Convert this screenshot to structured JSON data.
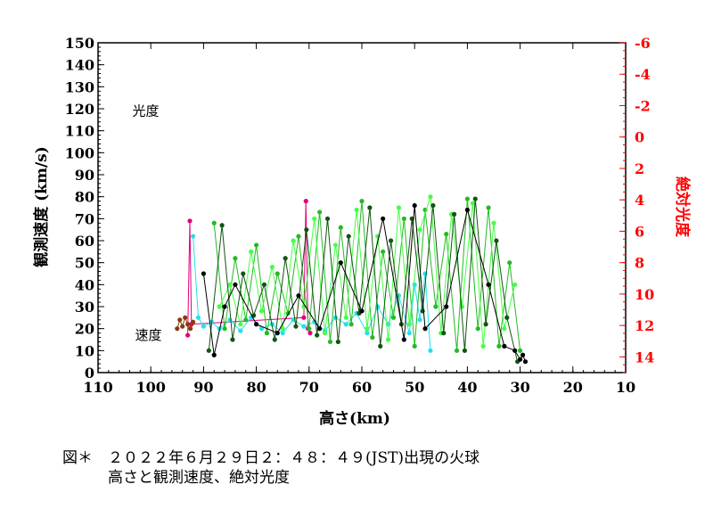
{
  "caption": {
    "line1": "図＊　２０２２年６月２９日２：４８：４９(JST)出現の火球",
    "line2": "　　　高さと観測速度、絶対光度"
  },
  "chart_data": {
    "type": "scatter",
    "title": "",
    "xlabel": "高さ(km)",
    "ylabel": "観測速度 (km/s)",
    "y2label": "絶対光度",
    "xlim": [
      110,
      10
    ],
    "ylim": [
      0,
      150
    ],
    "y2lim": [
      -6,
      15
    ],
    "x_ticks": [
      110,
      100,
      90,
      80,
      70,
      60,
      50,
      40,
      30,
      20,
      10
    ],
    "y_ticks": [
      0,
      10,
      20,
      30,
      40,
      50,
      60,
      70,
      80,
      90,
      100,
      110,
      120,
      130,
      140,
      150
    ],
    "y2_ticks": [
      -6,
      -4,
      -2,
      0,
      2,
      4,
      6,
      8,
      10,
      12,
      14
    ],
    "annotations": [
      {
        "text": "光度",
        "x": 103.5,
        "y": 117
      },
      {
        "text": "速度",
        "x": 103,
        "y": 15
      }
    ],
    "colors": {
      "axis": "#000000",
      "right_axis": "#ff0000",
      "magenta": "#e0007a",
      "brown": "#8b3a0e",
      "cyan": "#22e0f0",
      "green": "#22bb22",
      "light_green": "#44ff44",
      "dark_green": "#115511",
      "black": "#000000"
    },
    "series": [
      {
        "name": "magenta",
        "color": "#e0007a",
        "x": [
          93.0,
          92.6,
          92.3,
          71.0,
          70.6,
          70.2,
          69.8
        ],
        "y": [
          17,
          69,
          22,
          25,
          78,
          20,
          18
        ]
      },
      {
        "name": "brown",
        "color": "#8b3a0e",
        "x": [
          95.0,
          94.5,
          94.0,
          93.5,
          93.0,
          92.5,
          92.0
        ],
        "y": [
          20,
          24,
          21,
          25,
          22,
          20,
          23
        ]
      },
      {
        "name": "cyan",
        "color": "#22e0f0",
        "x": [
          92.0,
          91.0,
          90.0,
          88.5,
          87.0,
          85.0,
          83.0,
          81.0,
          79.0,
          77.0,
          75.0,
          73.0,
          71.0,
          69.0,
          67.0,
          65.0,
          63.0,
          61.0,
          59.0,
          57.0,
          55.0,
          53.0,
          51.0,
          50.0,
          49.0,
          48.0,
          47.0
        ],
        "y": [
          62,
          25,
          21,
          23,
          20,
          24,
          19,
          25,
          20,
          22,
          18,
          24,
          21,
          23,
          19,
          25,
          22,
          27,
          18,
          30,
          22,
          35,
          18,
          40,
          24,
          45,
          10
        ]
      },
      {
        "name": "green",
        "color": "#22bb22",
        "x": [
          88.0,
          86.0,
          84.0,
          82.0,
          80.0,
          78.0,
          76.0,
          74.0,
          72.0,
          70.0,
          68.0,
          66.0,
          64.0,
          62.0,
          60.0,
          58.0,
          56.0,
          54.0,
          52.0,
          50.0,
          48.0,
          46.0,
          44.0,
          42.0,
          40.0,
          38.0,
          36.0,
          34.0,
          32.0,
          30.0
        ],
        "y": [
          68,
          20,
          52,
          24,
          58,
          18,
          45,
          27,
          62,
          20,
          73,
          14,
          66,
          22,
          78,
          16,
          55,
          25,
          70,
          12,
          74,
          30,
          63,
          10,
          79,
          20,
          75,
          12,
          50,
          10
        ]
      },
      {
        "name": "light_green",
        "color": "#44ff44",
        "x": [
          87.0,
          85.0,
          83.0,
          81.0,
          79.0,
          77.0,
          75.0,
          73.0,
          71.0,
          69.0,
          67.0,
          65.0,
          63.0,
          61.0,
          59.0,
          57.0,
          55.0,
          53.0,
          51.0,
          49.0,
          47.0,
          45.0,
          43.0,
          41.0,
          39.0,
          37.0,
          35.0,
          33.0,
          31.0
        ],
        "y": [
          30,
          40,
          22,
          55,
          28,
          48,
          20,
          60,
          30,
          70,
          18,
          58,
          25,
          74,
          20,
          62,
          15,
          75,
          22,
          65,
          80,
          18,
          72,
          30,
          77,
          12,
          68,
          20,
          40
        ]
      },
      {
        "name": "dark_green",
        "color": "#115511",
        "x": [
          89.0,
          86.5,
          84.5,
          82.5,
          80.5,
          78.5,
          76.5,
          74.5,
          72.5,
          70.5,
          68.5,
          66.5,
          64.5,
          62.5,
          60.5,
          58.5,
          56.5,
          54.5,
          52.5,
          50.5,
          48.5,
          46.5,
          44.5,
          42.5,
          40.5,
          38.5,
          36.5,
          34.5,
          32.5,
          30.5
        ],
        "y": [
          10,
          67,
          15,
          45,
          26,
          40,
          15,
          52,
          21,
          65,
          17,
          70,
          14,
          62,
          27,
          75,
          12,
          60,
          22,
          70,
          28,
          76,
          18,
          72,
          10,
          79,
          22,
          60,
          25,
          5
        ]
      },
      {
        "name": "black",
        "color": "#000000",
        "x": [
          90.0,
          88.0,
          86.0,
          84.0,
          80.0,
          76.0,
          72.0,
          68.0,
          64.0,
          60.0,
          56.0,
          52.0,
          50.0,
          48.0,
          44.0,
          40.0,
          36.0,
          33.0,
          31.0,
          30.0,
          29.5,
          29.0
        ],
        "y": [
          45,
          8,
          30,
          40,
          22,
          18,
          35,
          20,
          50,
          28,
          70,
          15,
          76,
          20,
          30,
          74,
          40,
          12,
          10,
          6,
          8,
          5
        ]
      }
    ]
  }
}
